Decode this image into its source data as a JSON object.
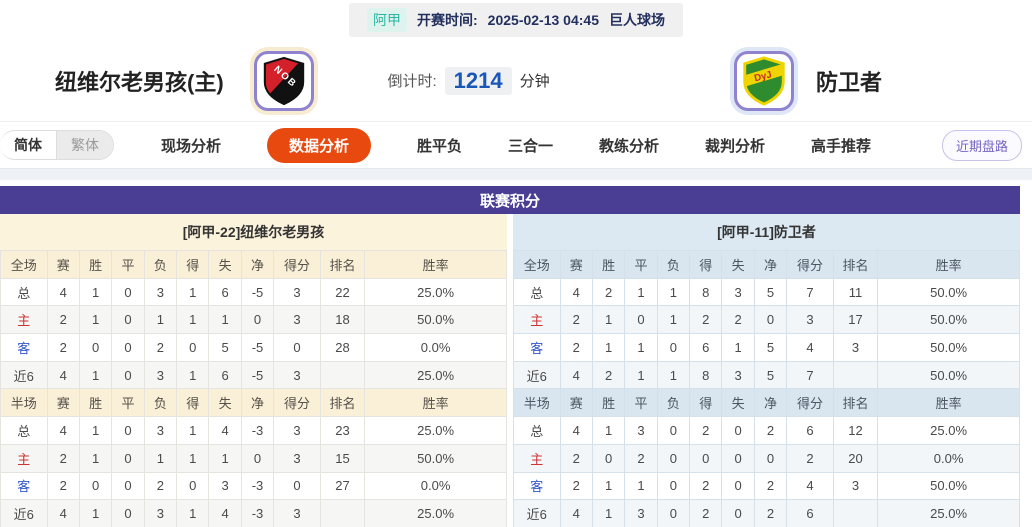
{
  "top_bar": {
    "league": "阿甲",
    "kickoff_label": "开赛时间:",
    "kickoff_time": "2025-02-13 04:45",
    "venue": "巨人球场"
  },
  "match": {
    "home": {
      "name": "纽维尔老男孩(主)",
      "badge_text": "NOB"
    },
    "away": {
      "name": "防卫者",
      "badge_text": "DyJ"
    },
    "countdown": {
      "label": "倒计时:",
      "value": "1214",
      "unit": "分钟"
    }
  },
  "nav": {
    "lang_toggle": [
      {
        "label": "简体",
        "active": true
      },
      {
        "label": "繁体",
        "active": false
      }
    ],
    "tabs": [
      {
        "label": "现场分析",
        "active": false
      },
      {
        "label": "数据分析",
        "active": true
      },
      {
        "label": "胜平负",
        "active": false
      },
      {
        "label": "三合一",
        "active": false
      },
      {
        "label": "教练分析",
        "active": false
      },
      {
        "label": "裁判分析",
        "active": false
      },
      {
        "label": "高手推荐",
        "active": false
      }
    ],
    "right_button": "近期盘路"
  },
  "colors": {
    "accent_purple": "#4a3e94",
    "active_tab_orange": "#e8490f",
    "league_teal": "#2ab5a0",
    "countdown_blue": "#1a56b8",
    "home_header_cream": "#fcf3dc",
    "away_header_blue": "#dde9f2",
    "home_row_red": "#cc3333",
    "away_row_blue": "#3355cc"
  },
  "standings": {
    "title": "联赛积分",
    "home": {
      "team_header": "[阿甲-22]纽维尔老男孩",
      "sections": [
        {
          "header": [
            "全场",
            "赛",
            "胜",
            "平",
            "负",
            "得",
            "失",
            "净",
            "得分",
            "排名",
            "胜率"
          ],
          "rows": [
            [
              "总",
              "4",
              "1",
              "0",
              "3",
              "1",
              "6",
              "-5",
              "3",
              "22",
              "25.0%"
            ],
            [
              "主",
              "2",
              "1",
              "0",
              "1",
              "1",
              "1",
              "0",
              "3",
              "18",
              "50.0%"
            ],
            [
              "客",
              "2",
              "0",
              "0",
              "2",
              "0",
              "5",
              "-5",
              "0",
              "28",
              "0.0%"
            ],
            [
              "近6",
              "4",
              "1",
              "0",
              "3",
              "1",
              "6",
              "-5",
              "3",
              "",
              "25.0%"
            ]
          ]
        },
        {
          "header": [
            "半场",
            "赛",
            "胜",
            "平",
            "负",
            "得",
            "失",
            "净",
            "得分",
            "排名",
            "胜率"
          ],
          "rows": [
            [
              "总",
              "4",
              "1",
              "0",
              "3",
              "1",
              "4",
              "-3",
              "3",
              "23",
              "25.0%"
            ],
            [
              "主",
              "2",
              "1",
              "0",
              "1",
              "1",
              "1",
              "0",
              "3",
              "15",
              "50.0%"
            ],
            [
              "客",
              "2",
              "0",
              "0",
              "2",
              "0",
              "3",
              "-3",
              "0",
              "27",
              "0.0%"
            ],
            [
              "近6",
              "4",
              "1",
              "0",
              "3",
              "1",
              "4",
              "-3",
              "3",
              "",
              "25.0%"
            ]
          ]
        }
      ]
    },
    "away": {
      "team_header": "[阿甲-11]防卫者",
      "sections": [
        {
          "header": [
            "全场",
            "赛",
            "胜",
            "平",
            "负",
            "得",
            "失",
            "净",
            "得分",
            "排名",
            "胜率"
          ],
          "rows": [
            [
              "总",
              "4",
              "2",
              "1",
              "1",
              "8",
              "3",
              "5",
              "7",
              "11",
              "50.0%"
            ],
            [
              "主",
              "2",
              "1",
              "0",
              "1",
              "2",
              "2",
              "0",
              "3",
              "17",
              "50.0%"
            ],
            [
              "客",
              "2",
              "1",
              "1",
              "0",
              "6",
              "1",
              "5",
              "4",
              "3",
              "50.0%"
            ],
            [
              "近6",
              "4",
              "2",
              "1",
              "1",
              "8",
              "3",
              "5",
              "7",
              "",
              "50.0%"
            ]
          ]
        },
        {
          "header": [
            "半场",
            "赛",
            "胜",
            "平",
            "负",
            "得",
            "失",
            "净",
            "得分",
            "排名",
            "胜率"
          ],
          "rows": [
            [
              "总",
              "4",
              "1",
              "3",
              "0",
              "2",
              "0",
              "2",
              "6",
              "12",
              "25.0%"
            ],
            [
              "主",
              "2",
              "0",
              "2",
              "0",
              "0",
              "0",
              "0",
              "2",
              "20",
              "0.0%"
            ],
            [
              "客",
              "2",
              "1",
              "1",
              "0",
              "2",
              "0",
              "2",
              "4",
              "3",
              "50.0%"
            ],
            [
              "近6",
              "4",
              "1",
              "3",
              "0",
              "2",
              "0",
              "2",
              "6",
              "",
              "25.0%"
            ]
          ]
        }
      ]
    }
  }
}
